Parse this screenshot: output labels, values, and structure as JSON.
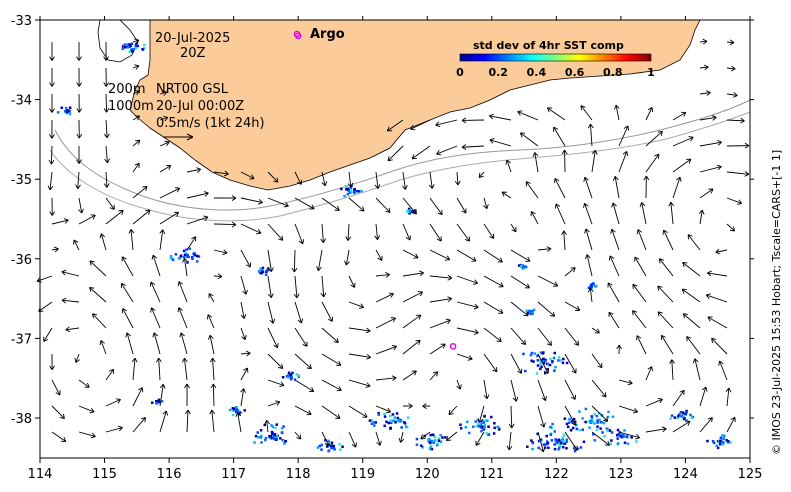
{
  "map": {
    "date_label": "20-Jul-2025",
    "hour_label": "20Z",
    "depth_label_1": "200m",
    "depth_label_2": "1000m",
    "source_label": "NRT00 GSL",
    "source_time": "20-Jul 00:00Z",
    "scale_label": "0.5m/s (1kt 24h)",
    "argo_label": "Argo",
    "credit": "© IMOS 23-Jul-2025 15:53 Hobart; Tscale=CARS+[-1 1]",
    "lon_ticks": [
      "114",
      "115",
      "116",
      "117",
      "118",
      "119",
      "120",
      "121",
      "122",
      "123",
      "124",
      "125"
    ],
    "lat_ticks": [
      "-33",
      "-34",
      "-35",
      "-36",
      "-37",
      "-38"
    ],
    "lon_range": [
      114,
      125
    ],
    "lat_range": [
      -38.5,
      -33
    ],
    "argo_floats": [
      {
        "lon": 118.0,
        "lat": -33.2
      },
      {
        "lon": 120.4,
        "lat": -37.1
      }
    ]
  },
  "colorbar": {
    "title": "std dev of 4hr SST comp",
    "ticks": [
      "0",
      "0.2",
      "0.4",
      "0.6",
      "0.8",
      "1"
    ],
    "colors": [
      "#00008f",
      "#0000ff",
      "#0080ff",
      "#00ffff",
      "#80ff80",
      "#ffff00",
      "#ff8000",
      "#ff0000",
      "#800000"
    ]
  },
  "colors": {
    "land": "#fccb9a",
    "argo": "#e000e0"
  }
}
